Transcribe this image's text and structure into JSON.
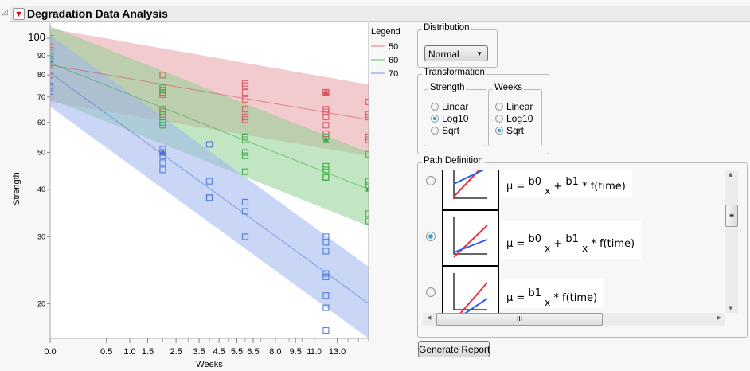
{
  "header": {
    "title": "Degradation Data Analysis"
  },
  "chart_data": {
    "type": "scatter",
    "xlabel": "Weeks",
    "ylabel": "Strength",
    "x_scale": "sqrt",
    "y_scale": "log",
    "xlim": [
      0,
      16
    ],
    "ylim": [
      16.2,
      109.6
    ],
    "x_ticks": [
      "0.0",
      "0.5",
      "1.0",
      "1.5",
      "2.5",
      "3.5",
      "4.5",
      "5.5",
      "6.5",
      "8.0",
      "9.5",
      "11.0",
      "13.0"
    ],
    "y_ticks": [
      "100",
      "90",
      "80",
      "70",
      "60",
      "50",
      "40",
      "30",
      "20"
    ],
    "legend": {
      "title": "Legend",
      "placement": "right",
      "entries": [
        "50",
        "60",
        "70"
      ]
    },
    "series": [
      {
        "name": "50",
        "color": "#d9545f",
        "band_color": "#e8a0a8",
        "points": [
          [
            0,
            95
          ],
          [
            0,
            93
          ],
          [
            0,
            82
          ],
          [
            0,
            80
          ],
          [
            2,
            80
          ],
          [
            2,
            72
          ],
          [
            2,
            71
          ],
          [
            2,
            64
          ],
          [
            2,
            63
          ],
          [
            6,
            76
          ],
          [
            6,
            75
          ],
          [
            6,
            72
          ],
          [
            6,
            69
          ],
          [
            6,
            65
          ],
          [
            6,
            62
          ],
          [
            6,
            61
          ],
          [
            12,
            72
          ],
          [
            12,
            72
          ],
          [
            12,
            65
          ],
          [
            12,
            64
          ],
          [
            12,
            62
          ],
          [
            12,
            59
          ],
          [
            12,
            56
          ],
          [
            16,
            68
          ],
          [
            16,
            63
          ],
          [
            16,
            62
          ],
          [
            16,
            55
          ],
          [
            16,
            54
          ]
        ],
        "markers_triangle": [
          [
            12,
            72
          ]
        ],
        "fit": [
          [
            0,
            85
          ],
          [
            16,
            61
          ]
        ],
        "band_upper": [
          [
            0,
            106
          ],
          [
            16,
            75.5
          ]
        ],
        "band_lower": [
          [
            0,
            68
          ],
          [
            16,
            49
          ]
        ]
      },
      {
        "name": "60",
        "color": "#3eab44",
        "band_color": "#8fd194",
        "points": [
          [
            0,
            100
          ],
          [
            0,
            92
          ],
          [
            0,
            88
          ],
          [
            0,
            86
          ],
          [
            2,
            74
          ],
          [
            2,
            73
          ],
          [
            2,
            65
          ],
          [
            2,
            62
          ],
          [
            2,
            60
          ],
          [
            2,
            59
          ],
          [
            6,
            55
          ],
          [
            6,
            54
          ],
          [
            6,
            50
          ],
          [
            6,
            49
          ],
          [
            6,
            44.5
          ],
          [
            12,
            55
          ],
          [
            12,
            46
          ],
          [
            12,
            45
          ],
          [
            12,
            43
          ],
          [
            12,
            43
          ],
          [
            16,
            49.5
          ],
          [
            16,
            42
          ],
          [
            16,
            41
          ],
          [
            16,
            34.5
          ],
          [
            16,
            33
          ]
        ],
        "markers_triangle": [
          [
            12,
            54
          ],
          [
            16,
            40
          ]
        ],
        "fit": [
          [
            0,
            86
          ],
          [
            16,
            40
          ]
        ],
        "band_upper": [
          [
            0,
            107.5
          ],
          [
            16,
            50
          ]
        ],
        "band_lower": [
          [
            0,
            69
          ],
          [
            16,
            32
          ]
        ]
      },
      {
        "name": "70",
        "color": "#4a73d9",
        "band_color": "#9fb4ec",
        "points": [
          [
            0,
            90
          ],
          [
            0,
            88
          ],
          [
            0,
            85
          ],
          [
            0,
            75
          ],
          [
            0,
            74
          ],
          [
            0,
            70
          ],
          [
            2,
            51
          ],
          [
            2,
            50
          ],
          [
            2,
            49
          ],
          [
            2,
            47
          ],
          [
            2,
            45
          ],
          [
            4,
            52.5
          ],
          [
            4,
            42
          ],
          [
            4,
            38
          ],
          [
            4,
            38
          ],
          [
            6,
            37
          ],
          [
            6,
            35
          ],
          [
            6,
            30
          ],
          [
            12,
            30
          ],
          [
            12,
            29
          ],
          [
            12,
            27.5
          ],
          [
            12,
            24
          ],
          [
            12,
            23.5
          ],
          [
            12,
            21
          ],
          [
            12,
            19.5
          ],
          [
            12,
            17
          ]
        ],
        "markers_triangle": [
          [
            2,
            50
          ]
        ],
        "fit": [
          [
            0,
            81
          ],
          [
            16,
            20
          ]
        ],
        "band_upper": [
          [
            0,
            102
          ],
          [
            16,
            25
          ]
        ],
        "band_lower": [
          [
            0,
            66
          ],
          [
            16,
            16.2
          ]
        ]
      }
    ]
  },
  "distribution": {
    "label": "Distribution",
    "selected": "Normal"
  },
  "transformation": {
    "label": "Transformation",
    "strength": {
      "label": "Strength",
      "options": [
        "Linear",
        "Log10",
        "Sqrt"
      ],
      "selected": "Log10"
    },
    "weeks": {
      "label": "Weeks",
      "options": [
        "Linear",
        "Log10",
        "Sqrt"
      ],
      "selected": "Sqrt"
    }
  },
  "path_definition": {
    "label": "Path Definition",
    "options": [
      {
        "mu": "μ =",
        "t1": "b0",
        "s1": "x",
        "op": "+",
        "t2": "b1",
        "s2": "",
        "tail": "* f(time)",
        "selected": false
      },
      {
        "mu": "μ =",
        "t1": "b0",
        "s1": "x",
        "op": "+",
        "t2": "b1",
        "s2": "x",
        "tail": "* f(time)",
        "selected": true
      },
      {
        "mu": "μ =",
        "t1": "b1",
        "s1": "x",
        "op": "",
        "t2": "",
        "s2": "",
        "tail": "* f(time)",
        "selected": false
      }
    ],
    "scroll_grip": "III"
  },
  "generate_button": "Generate Report"
}
